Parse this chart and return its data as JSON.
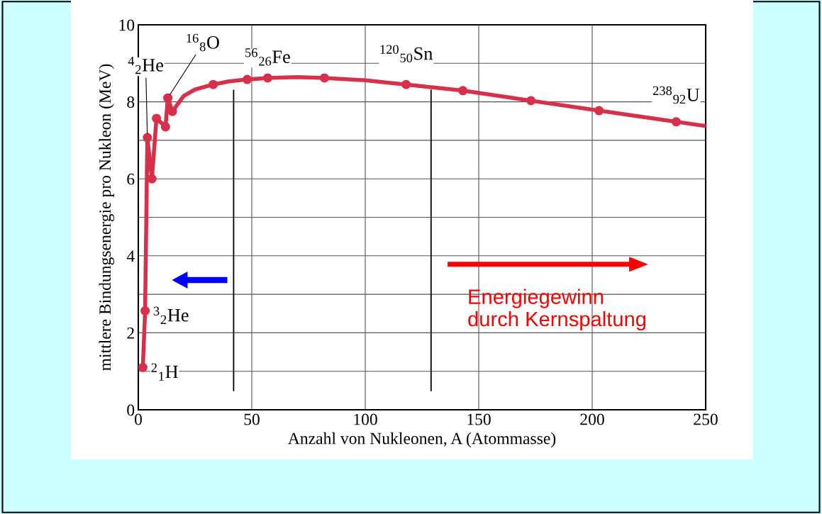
{
  "chart_data": {
    "type": "line",
    "xlabel": "Anzahl von Nukleonen, A (Atommasse)",
    "ylabel": "mittlere Bindungsenergie pro Nukleon (MeV)",
    "series": [
      {
        "color": "#d7304a",
        "x": [
          2,
          3,
          4,
          6,
          8,
          12,
          13,
          15,
          20,
          25,
          33,
          40,
          48,
          57,
          70,
          82,
          100,
          118,
          143,
          173,
          203,
          237,
          250
        ],
        "values": [
          1.1,
          2.57,
          7.07,
          6.0,
          7.57,
          7.35,
          8.1,
          7.75,
          8.15,
          8.32,
          8.45,
          8.53,
          8.58,
          8.62,
          8.64,
          8.62,
          8.56,
          8.45,
          8.29,
          8.03,
          7.77,
          7.48,
          7.37
        ]
      },
      {
        "type": "scatter",
        "marker": "circle",
        "color": "#d7304a",
        "x": [
          2,
          3,
          4,
          6,
          8,
          12,
          13,
          15,
          33,
          48,
          57,
          82,
          118,
          143,
          173,
          203,
          237
        ],
        "values": [
          1.1,
          2.57,
          7.07,
          6.0,
          7.57,
          7.35,
          8.1,
          7.75,
          8.45,
          8.58,
          8.62,
          8.62,
          8.45,
          8.29,
          8.03,
          7.77,
          7.48
        ]
      }
    ],
    "xlim": [
      0,
      250
    ],
    "xticks": [
      0,
      50,
      100,
      150,
      200,
      250
    ],
    "ylim": [
      0,
      10
    ],
    "yticks": [
      0,
      {
        "value": 1,
        "label": null
      },
      2,
      {
        "value": 3,
        "label": null
      },
      4,
      {
        "value": 5,
        "label": null
      },
      6,
      {
        "value": 7,
        "label": null
      },
      8,
      {
        "value": 9,
        "label": null
      },
      10
    ],
    "grid": true,
    "ref_lines": [
      {
        "axis": "x",
        "value": 42,
        "color": "#000000"
      },
      {
        "axis": "x",
        "value": 129,
        "color": "#000000"
      }
    ],
    "annotations": [
      {
        "text": "$^{2}$$_{1}$H",
        "x": 2,
        "y": 1.1
      },
      {
        "text": "$^{3}$$_{2}$He",
        "x": 3,
        "y": 2.57
      },
      {
        "text": "$^{4}$$_{2}$He",
        "x": 4,
        "y": 7.07
      },
      {
        "text": "$^{16}$$_{8}$O",
        "x": 13,
        "y": 8.1
      },
      {
        "text": "$^{56}$$_{26}$Fe",
        "x": 57,
        "y": 8.62
      },
      {
        "text": "$^{120}$$_{50}$Sn",
        "x": 118,
        "y": 8.45
      },
      {
        "text": "$^{238}$$_{92}$U",
        "x": 237,
        "y": 7.48
      },
      "Energiegewinn\ndurch Kernspaltung"
    ]
  }
}
